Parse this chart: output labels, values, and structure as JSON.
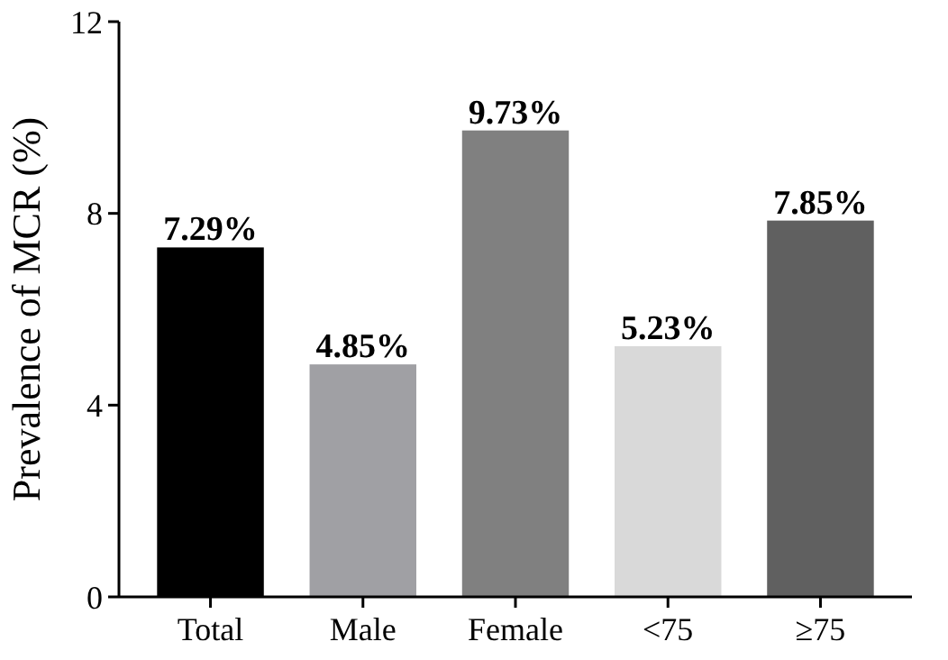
{
  "chart_data": {
    "type": "bar",
    "ylabel": "Prevalence of MCR (%)",
    "categories": [
      "Total",
      "Male",
      "Female",
      "<75",
      "≥75"
    ],
    "values": [
      7.29,
      4.85,
      9.73,
      5.23,
      7.85
    ],
    "colors": [
      "#000000",
      "#a0a0a4",
      "#808080",
      "#d9d9d9",
      "#606060"
    ],
    "value_labels": [
      "7.29%",
      "4.85%",
      "9.73%",
      "5.23%",
      "7.85%"
    ],
    "ylim": [
      0,
      12
    ],
    "yticks": [
      0,
      4,
      8,
      12
    ],
    "grid": false
  }
}
